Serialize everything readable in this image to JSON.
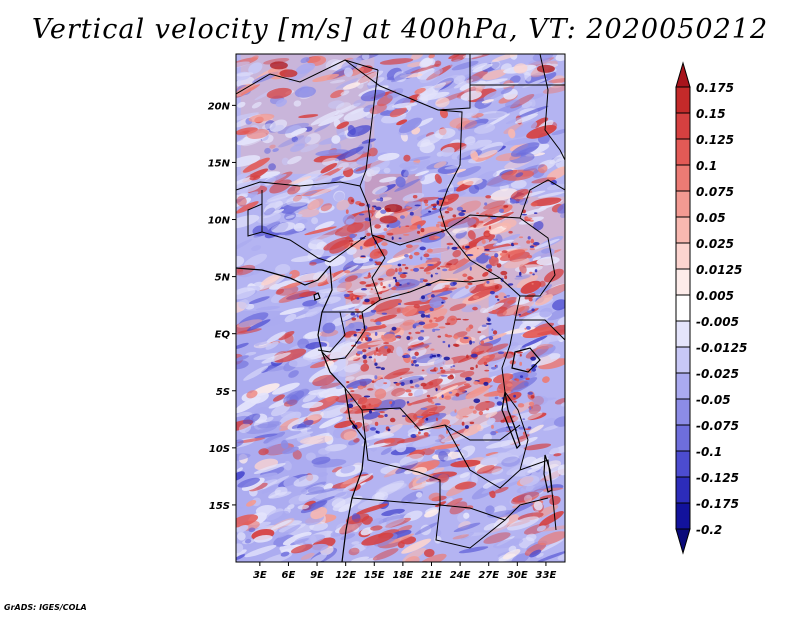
{
  "title": "Vertical velocity [m/s] at 400hPa, VT: 2020050212",
  "credit": "GrADS: IGES/COLA",
  "map": {
    "lat_range": [
      -20,
      24.5
    ],
    "lon_range": [
      0.5,
      35
    ],
    "lat_ticks": [
      "20N",
      "15N",
      "10N",
      "5N",
      "EQ",
      "5S",
      "10S",
      "15S"
    ],
    "lon_ticks": [
      "3E",
      "6E",
      "9E",
      "12E",
      "15E",
      "18E",
      "21E",
      "24E",
      "27E",
      "30E",
      "33E"
    ],
    "lat_values": [
      20,
      15,
      10,
      5,
      0,
      -5,
      -10,
      -15
    ],
    "lon_values": [
      3,
      6,
      9,
      12,
      15,
      18,
      21,
      24,
      27,
      30,
      33
    ]
  },
  "colorbar": {
    "labels": [
      "0.175",
      "0.15",
      "0.125",
      "0.1",
      "0.075",
      "0.05",
      "0.025",
      "0.0125",
      "0.005",
      "-0.005",
      "-0.0125",
      "-0.025",
      "-0.05",
      "-0.075",
      "-0.1",
      "-0.125",
      "-0.175",
      "-0.2"
    ],
    "colors": [
      "#a8141c",
      "#c42a2a",
      "#d64040",
      "#e35a56",
      "#ec7b74",
      "#f39a92",
      "#f8b8b0",
      "#fcd4cf",
      "#fdecea",
      "#ffffff",
      "#e4e4fb",
      "#c8c8f6",
      "#aaaaf0",
      "#8c8ce6",
      "#6e6edc",
      "#4c4cd0",
      "#2c2cba",
      "#12129c",
      "#0a0a7a"
    ]
  }
}
